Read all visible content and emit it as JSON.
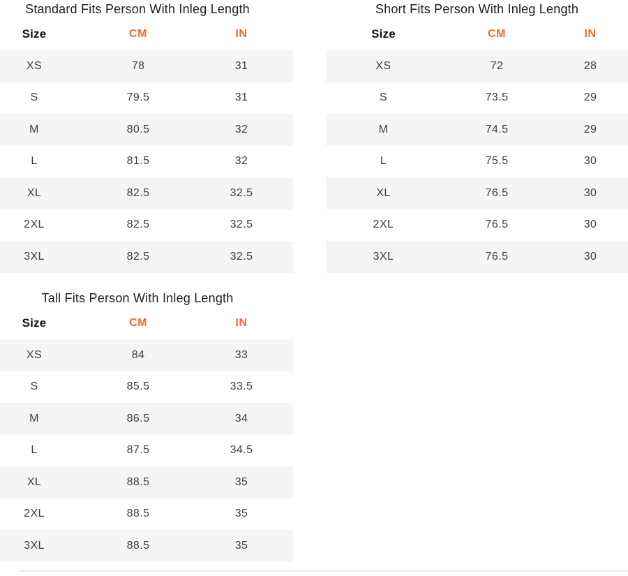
{
  "colors": {
    "accent": "#ED6B35",
    "row_alt": "#F5F5F5",
    "title_text": "#202020",
    "cell_text": "#3D3D3D",
    "divider": "#EAEAEA"
  },
  "tables": [
    {
      "title": "Standard Fits Person With Inleg Length",
      "headers": [
        "Size",
        "CM",
        "IN"
      ],
      "rows": [
        [
          "XS",
          "78",
          "31"
        ],
        [
          "S",
          "79.5",
          "31"
        ],
        [
          "M",
          "80.5",
          "32"
        ],
        [
          "L",
          "81.5",
          "32"
        ],
        [
          "XL",
          "82.5",
          "32.5"
        ],
        [
          "2XL",
          "82.5",
          "32.5"
        ],
        [
          "3XL",
          "82.5",
          "32.5"
        ]
      ]
    },
    {
      "title": "Short Fits Person With Inleg Length",
      "headers": [
        "Size",
        "CM",
        "IN"
      ],
      "rows": [
        [
          "XS",
          "72",
          "28"
        ],
        [
          "S",
          "73.5",
          "29"
        ],
        [
          "M",
          "74.5",
          "29"
        ],
        [
          "L",
          "75.5",
          "30"
        ],
        [
          "XL",
          "76.5",
          "30"
        ],
        [
          "2XL",
          "76.5",
          "30"
        ],
        [
          "3XL",
          "76.5",
          "30"
        ]
      ]
    },
    {
      "title": "Tall Fits Person With Inleg Length",
      "headers": [
        "Size",
        "CM",
        "IN"
      ],
      "rows": [
        [
          "XS",
          "84",
          "33"
        ],
        [
          "S",
          "85.5",
          "33.5"
        ],
        [
          "M",
          "86.5",
          "34"
        ],
        [
          "L",
          "87.5",
          "34.5"
        ],
        [
          "XL",
          "88.5",
          "35"
        ],
        [
          "2XL",
          "88.5",
          "35"
        ],
        [
          "3XL",
          "88.5",
          "35"
        ]
      ]
    }
  ]
}
